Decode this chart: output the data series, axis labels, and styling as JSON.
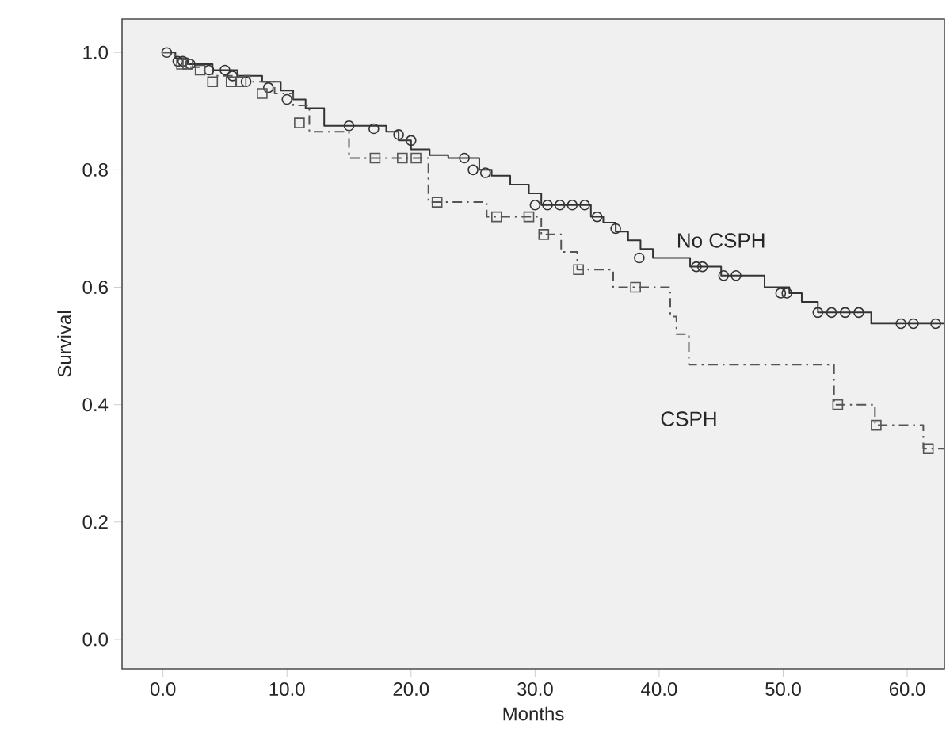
{
  "chart_data": {
    "type": "step",
    "xlabel": "Months",
    "ylabel": "Survival",
    "xlim": [
      -3.3,
      63
    ],
    "ylim": [
      -0.05,
      1.057
    ],
    "xticks": [
      {
        "value": 0,
        "label": "0.0"
      },
      {
        "value": 10,
        "label": "10.0"
      },
      {
        "value": 20,
        "label": "20.0"
      },
      {
        "value": 30,
        "label": "30.0"
      },
      {
        "value": 40,
        "label": "40.0"
      },
      {
        "value": 50,
        "label": "50.0"
      },
      {
        "value": 60,
        "label": "60.0"
      }
    ],
    "yticks": [
      {
        "value": 0,
        "label": "0.0"
      },
      {
        "value": 0.2,
        "label": "0.2"
      },
      {
        "value": 0.4,
        "label": "0.4"
      },
      {
        "value": 0.6,
        "label": "0.6"
      },
      {
        "value": 0.8,
        "label": "0.8"
      },
      {
        "value": 1.0,
        "label": "1.0"
      }
    ],
    "series": [
      {
        "name": "No CSPH",
        "color": "#333333",
        "line_style": "solid",
        "x": [
          0,
          1,
          2,
          4,
          6,
          8,
          9.5,
          10.5,
          11.5,
          13,
          18,
          19,
          20,
          21.5,
          23,
          25.5,
          26.5,
          28,
          29.5,
          30.5,
          34.5,
          35.5,
          36.5,
          37.5,
          38.5,
          39.5,
          42.5,
          45,
          48.5,
          50.5,
          51.5,
          52.8,
          57.1,
          63
        ],
        "values": [
          1.0,
          0.99,
          0.98,
          0.97,
          0.96,
          0.95,
          0.935,
          0.92,
          0.905,
          0.875,
          0.865,
          0.85,
          0.835,
          0.825,
          0.82,
          0.8,
          0.79,
          0.775,
          0.76,
          0.74,
          0.72,
          0.71,
          0.695,
          0.68,
          0.665,
          0.65,
          0.635,
          0.62,
          0.6,
          0.59,
          0.575,
          0.557,
          0.538,
          0.538
        ]
      },
      {
        "name": "CSPH",
        "color": "#555555",
        "line_style": "dashed",
        "x": [
          0,
          1,
          2,
          4,
          7,
          9,
          10.5,
          11.8,
          15,
          21.4,
          26.1,
          30.5,
          32.1,
          33.4,
          36.3,
          40.9,
          41.4,
          42.4,
          54.1,
          57.4,
          61.3,
          63
        ],
        "values": [
          1.0,
          0.99,
          0.975,
          0.96,
          0.95,
          0.93,
          0.91,
          0.865,
          0.82,
          0.745,
          0.72,
          0.69,
          0.66,
          0.63,
          0.6,
          0.55,
          0.52,
          0.468,
          0.4,
          0.365,
          0.325,
          0.325
        ]
      },
      {
        "type": "scatter",
        "marker": "circle",
        "color": "#333333",
        "x": [
          0.3,
          1.2,
          1.6,
          2.2,
          3.7,
          5,
          5.6,
          6.7,
          8.5,
          10,
          15,
          17,
          19,
          20,
          24.3,
          25,
          26,
          30,
          31,
          32,
          33,
          34,
          35,
          36.5,
          38.4,
          43,
          43.5,
          45.2,
          46.2,
          49.8,
          50.3,
          52.8,
          53.9,
          55,
          56.1,
          59.5,
          60.5,
          62.3
        ],
        "values": [
          1.0,
          0.985,
          0.985,
          0.98,
          0.97,
          0.97,
          0.96,
          0.95,
          0.94,
          0.92,
          0.875,
          0.87,
          0.86,
          0.85,
          0.82,
          0.8,
          0.795,
          0.74,
          0.74,
          0.74,
          0.74,
          0.74,
          0.72,
          0.7,
          0.65,
          0.635,
          0.635,
          0.62,
          0.62,
          0.59,
          0.59,
          0.557,
          0.557,
          0.557,
          0.557,
          0.538,
          0.538,
          0.538
        ]
      },
      {
        "type": "scatter",
        "marker": "square",
        "color": "#555555",
        "x": [
          1.5,
          2,
          3,
          4,
          5.5,
          6.3,
          8,
          11,
          17.1,
          19.3,
          20.4,
          22.1,
          26.9,
          29.5,
          30.7,
          33.5,
          38.1,
          54.4,
          57.5,
          61.7
        ],
        "values": [
          0.98,
          0.98,
          0.97,
          0.95,
          0.95,
          0.95,
          0.93,
          0.88,
          0.82,
          0.82,
          0.82,
          0.745,
          0.72,
          0.72,
          0.69,
          0.63,
          0.6,
          0.4,
          0.365,
          0.325
        ]
      }
    ]
  }
}
